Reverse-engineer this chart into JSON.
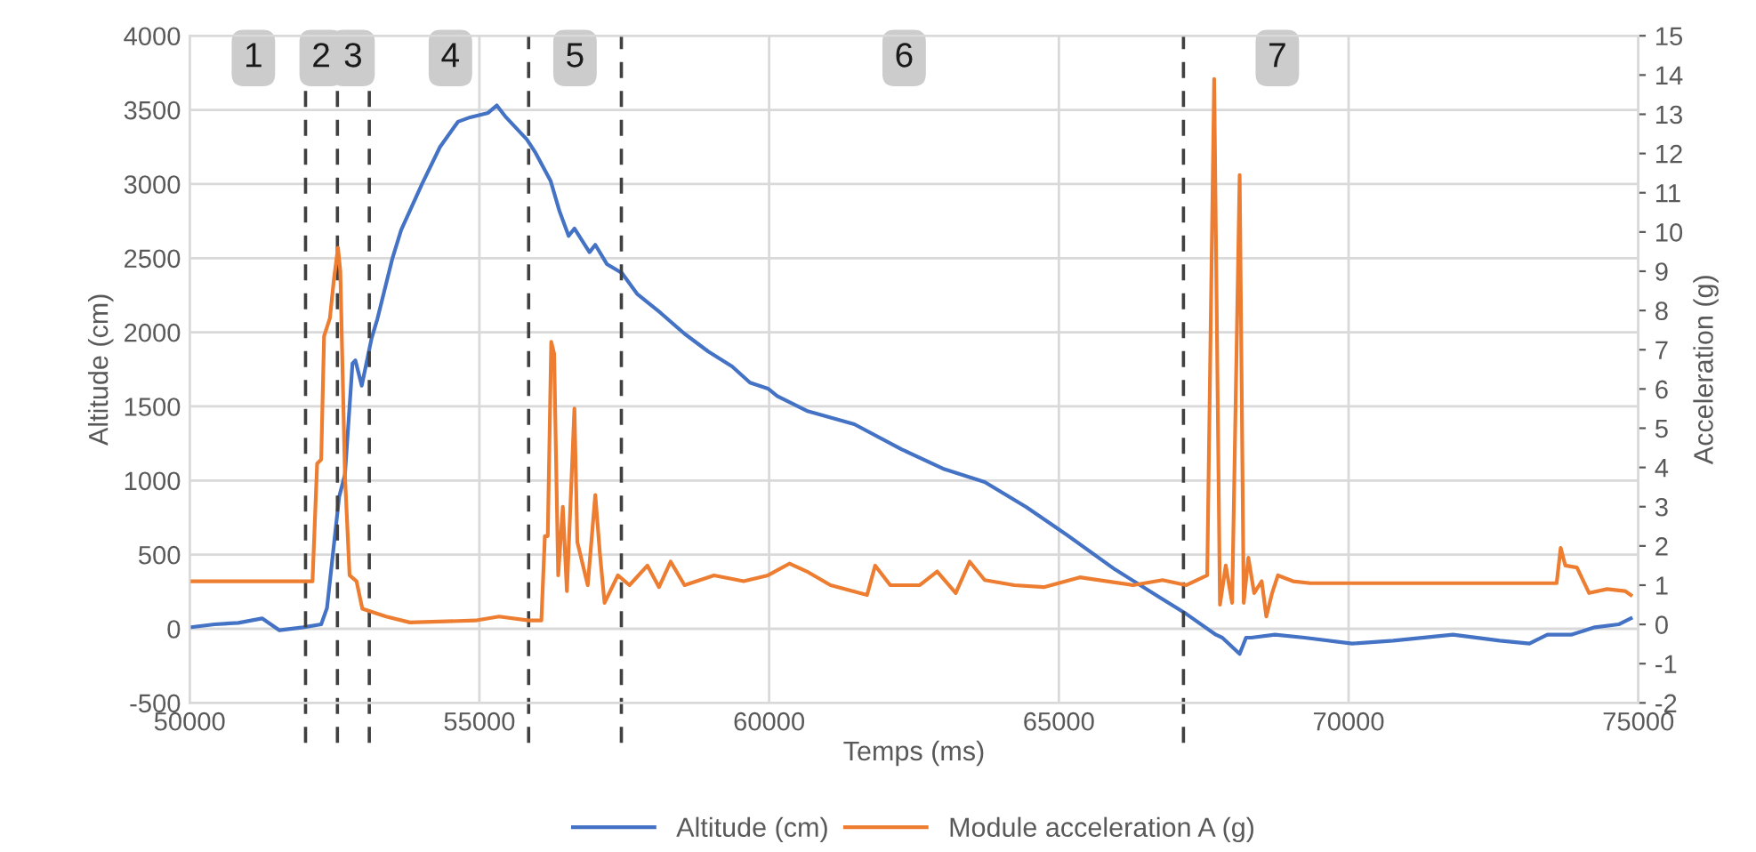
{
  "chart_data": {
    "type": "line",
    "xlabel": "Temps (ms)",
    "ylabel": "Altitude (cm)",
    "y2label": "Acceleration (g)",
    "xlim": [
      50000,
      75000
    ],
    "xticks": [
      50000,
      55000,
      60000,
      65000,
      70000,
      75000
    ],
    "ylim": [
      -500,
      4000
    ],
    "yticks": [
      -500,
      0,
      500,
      1000,
      1500,
      2000,
      2500,
      3000,
      3500,
      4000
    ],
    "y2lim": [
      -2,
      15
    ],
    "y2ticks": [
      -2,
      -1,
      0,
      1,
      2,
      3,
      4,
      5,
      6,
      7,
      8,
      9,
      10,
      11,
      12,
      13,
      14,
      15
    ],
    "grid": true,
    "legend": "bottom",
    "line_style": "solid",
    "marker": "none",
    "series": [
      {
        "name": "Altitude (cm)",
        "color": "#4472c4",
        "x": [
          50020,
          50430,
          50840,
          51250,
          51550,
          51960,
          52270,
          52370,
          52580,
          52680,
          52810,
          52860,
          52970,
          53140,
          53240,
          53500,
          53650,
          54010,
          54320,
          54630,
          54840,
          55150,
          55300,
          55460,
          55820,
          55970,
          56230,
          56380,
          56540,
          56640,
          56900,
          57000,
          57200,
          57460,
          57720,
          58130,
          58540,
          58950,
          59360,
          59670,
          59980,
          60140,
          60650,
          61470,
          62290,
          63000,
          63720,
          64440,
          65150,
          65970,
          66790,
          67200,
          67710,
          67820,
          68120,
          68230,
          68320,
          68730,
          69240,
          70060,
          70770,
          71800,
          72610,
          73120,
          73430,
          73840,
          74250,
          74660,
          74870
        ],
        "values": [
          10,
          30,
          40,
          70,
          -10,
          10,
          30,
          140,
          890,
          1040,
          1790,
          1810,
          1640,
          1960,
          2090,
          2500,
          2690,
          3000,
          3250,
          3420,
          3450,
          3480,
          3530,
          3450,
          3300,
          3210,
          3020,
          2820,
          2650,
          2700,
          2540,
          2590,
          2460,
          2400,
          2260,
          2130,
          1990,
          1870,
          1770,
          1660,
          1620,
          1570,
          1470,
          1380,
          1210,
          1080,
          990,
          820,
          630,
          400,
          200,
          100,
          -40,
          -60,
          -170,
          -60,
          -60,
          -40,
          -60,
          -100,
          -80,
          -40,
          -80,
          -100,
          -40,
          -40,
          10,
          30,
          70
        ]
      },
      {
        "name": "Module acceleration A (g)",
        "color": "#ed7d31",
        "axis": "y2",
        "x": [
          50020,
          52120,
          52200,
          52270,
          52320,
          52420,
          52490,
          52560,
          52600,
          52680,
          52760,
          52880,
          52980,
          53390,
          53800,
          54930,
          55340,
          55850,
          56070,
          56130,
          56180,
          56240,
          56290,
          56360,
          56440,
          56510,
          56640,
          56690,
          56870,
          57000,
          57080,
          57160,
          57390,
          57590,
          57900,
          58100,
          58300,
          58540,
          59050,
          59560,
          59980,
          60350,
          60650,
          61060,
          61690,
          61830,
          62090,
          62600,
          62900,
          63220,
          63460,
          63720,
          64230,
          64740,
          65360,
          66280,
          66790,
          67200,
          67560,
          67680,
          67780,
          67880,
          67990,
          68120,
          68190,
          68270,
          68370,
          68500,
          68580,
          68680,
          68780,
          69040,
          69340,
          70770,
          72820,
          73590,
          73660,
          73740,
          73940,
          74150,
          74460,
          74770,
          74870
        ],
        "values": [
          1.1,
          1.1,
          4.1,
          4.2,
          7.35,
          7.8,
          8.8,
          9.6,
          9.0,
          3.8,
          1.25,
          1.1,
          0.4,
          0.2,
          0.05,
          0.1,
          0.2,
          0.1,
          0.1,
          2.25,
          2.25,
          7.2,
          6.9,
          1.25,
          3.0,
          0.85,
          5.5,
          2.1,
          1.0,
          3.3,
          1.8,
          0.55,
          1.25,
          1.0,
          1.5,
          0.95,
          1.6,
          1.0,
          1.25,
          1.1,
          1.25,
          1.55,
          1.35,
          1.0,
          0.75,
          1.5,
          1.0,
          1.0,
          1.35,
          0.8,
          1.6,
          1.13,
          1.0,
          0.95,
          1.2,
          1.0,
          1.13,
          1.0,
          1.25,
          13.9,
          0.5,
          1.5,
          0.55,
          11.45,
          0.55,
          1.7,
          0.8,
          1.1,
          0.2,
          0.8,
          1.25,
          1.1,
          1.05,
          1.05,
          1.05,
          1.05,
          1.95,
          1.5,
          1.45,
          0.8,
          0.9,
          0.85,
          0.75
        ]
      }
    ],
    "ref_lines": [
      {
        "axis": "x",
        "value": 52000,
        "label": null,
        "color": "#404040",
        "line_style": "dashed"
      },
      {
        "axis": "x",
        "value": 52550,
        "label": null,
        "color": "#404040",
        "line_style": "dashed"
      },
      {
        "axis": "x",
        "value": 53100,
        "label": null,
        "color": "#404040",
        "line_style": "dashed"
      },
      {
        "axis": "x",
        "value": 55850,
        "label": null,
        "color": "#404040",
        "line_style": "dashed"
      },
      {
        "axis": "x",
        "value": 57450,
        "label": null,
        "color": "#404040",
        "line_style": "dashed"
      },
      {
        "axis": "x",
        "value": 67150,
        "label": null,
        "color": "#404040",
        "line_style": "dashed"
      }
    ],
    "annotations": [
      {
        "text": "1",
        "x": 51100,
        "y": 3850
      },
      {
        "text": "2",
        "x": 52270,
        "y": 3850
      },
      {
        "text": "3",
        "x": 52820,
        "y": 3850
      },
      {
        "text": "4",
        "x": 54500,
        "y": 3850
      },
      {
        "text": "5",
        "x": 56650,
        "y": 3850
      },
      {
        "text": "6",
        "x": 62330,
        "y": 3850
      },
      {
        "text": "7",
        "x": 68770,
        "y": 3850
      }
    ]
  }
}
